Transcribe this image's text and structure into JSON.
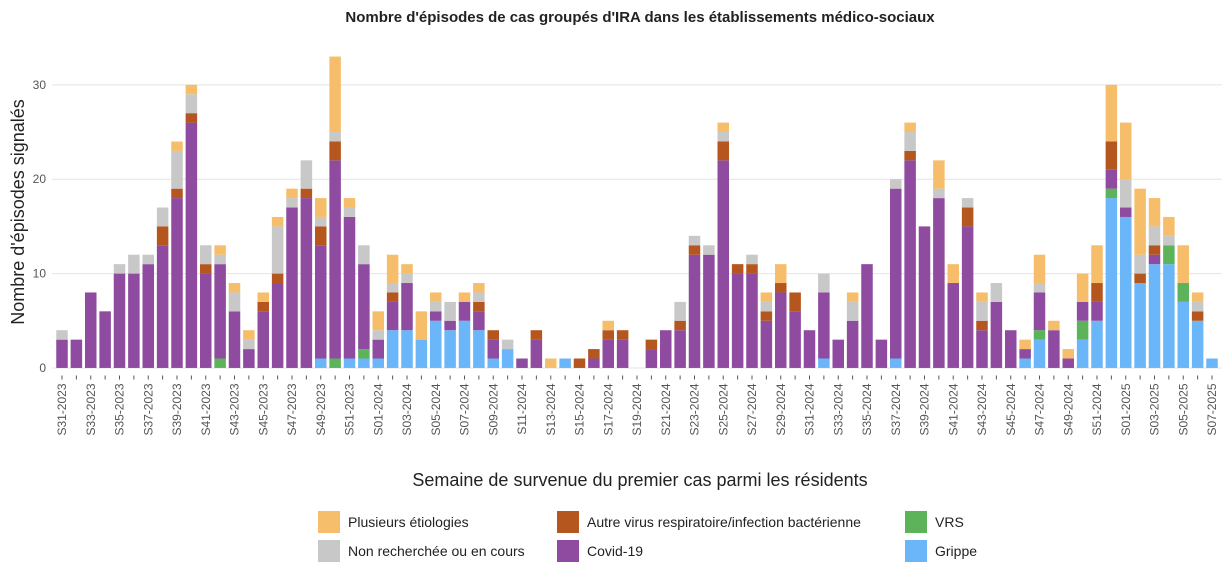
{
  "chart_data": {
    "type": "stacked_bar",
    "title": "Nombre d'épisodes de cas groupés d'IRA dans les établissements médico-sociaux",
    "x_label": "Semaine de survenue du premier cas parmi les résidents",
    "y_label": "Nombre d'épisodes signalés",
    "categories": [
      "S31-2023",
      null,
      "S33-2023",
      null,
      "S35-2023",
      null,
      "S37-2023",
      null,
      "S39-2023",
      null,
      "S41-2023",
      null,
      "S43-2023",
      null,
      "S45-2023",
      null,
      "S47-2023",
      null,
      "S49-2023",
      null,
      "S51-2023",
      null,
      "S01-2024",
      null,
      "S03-2024",
      null,
      "S05-2024",
      null,
      "S07-2024",
      null,
      "S09-2024",
      null,
      "S11-2024",
      null,
      "S13-2024",
      null,
      "S15-2024",
      null,
      "S17-2024",
      null,
      "S19-2024",
      null,
      "S21-2024",
      null,
      "S23-2024",
      null,
      "S25-2024",
      null,
      "S27-2024",
      null,
      "S29-2024",
      null,
      "S31-2024",
      null,
      "S33-2024",
      null,
      "S35-2024",
      null,
      "S37-2024",
      null,
      "S39-2024",
      null,
      "S41-2024",
      null,
      "S43-2024",
      null,
      "S45-2024",
      null,
      "S47-2024",
      null,
      "S49-2024",
      null,
      "S51-2024",
      null,
      "S01-2025",
      null,
      "S03-2025",
      null,
      "S05-2025",
      null,
      "S07-2025"
    ],
    "series": [
      {
        "name": "Grippe",
        "color": "#6bb6f8",
        "values": [
          0,
          0,
          0,
          0,
          0,
          0,
          0,
          0,
          0,
          0,
          0,
          0,
          0,
          0,
          0,
          0,
          0,
          0,
          1,
          0,
          1,
          1,
          1,
          4,
          4,
          3,
          5,
          4,
          5,
          4,
          1,
          2,
          0,
          0,
          0,
          1,
          0,
          0,
          0,
          0,
          0,
          0,
          0,
          0,
          0,
          0,
          0,
          0,
          0,
          0,
          0,
          0,
          0,
          1,
          0,
          0,
          0,
          0,
          1,
          0,
          0,
          0,
          0,
          0,
          0,
          0,
          0,
          1,
          3,
          0,
          0,
          3,
          5,
          18,
          16,
          9,
          11,
          11,
          7,
          5,
          1
        ]
      },
      {
        "name": "VRS",
        "color": "#5cb35a",
        "values": [
          0,
          0,
          0,
          0,
          0,
          0,
          0,
          0,
          0,
          0,
          0,
          1,
          0,
          0,
          0,
          0,
          0,
          0,
          0,
          1,
          0,
          1,
          0,
          0,
          0,
          0,
          0,
          0,
          0,
          0,
          0,
          0,
          0,
          0,
          0,
          0,
          0,
          0,
          0,
          0,
          0,
          0,
          0,
          0,
          0,
          0,
          0,
          0,
          0,
          0,
          0,
          0,
          0,
          0,
          0,
          0,
          0,
          0,
          0,
          0,
          0,
          0,
          0,
          0,
          0,
          0,
          0,
          0,
          1,
          0,
          0,
          2,
          0,
          1,
          0,
          0,
          0,
          2,
          2,
          0,
          0
        ]
      },
      {
        "name": "Covid-19",
        "color": "#8e4ba0",
        "values": [
          3,
          3,
          8,
          6,
          10,
          10,
          11,
          13,
          18,
          26,
          10,
          10,
          6,
          2,
          6,
          9,
          17,
          18,
          12,
          21,
          15,
          9,
          2,
          3,
          5,
          0,
          1,
          1,
          2,
          2,
          2,
          0,
          1,
          3,
          0,
          0,
          0,
          1,
          3,
          3,
          0,
          2,
          4,
          4,
          12,
          12,
          22,
          10,
          10,
          5,
          8,
          6,
          4,
          7,
          3,
          5,
          11,
          3,
          18,
          22,
          15,
          18,
          9,
          15,
          4,
          7,
          4,
          1,
          4,
          4,
          1,
          2,
          2,
          2,
          1,
          0,
          1,
          0,
          0,
          0,
          0
        ]
      },
      {
        "name": "Autre virus respiratoire/infection bactérienne",
        "color": "#b5561e",
        "values": [
          0,
          0,
          0,
          0,
          0,
          0,
          0,
          2,
          1,
          1,
          1,
          0,
          0,
          0,
          1,
          1,
          0,
          1,
          2,
          2,
          0,
          0,
          0,
          1,
          0,
          0,
          0,
          0,
          0,
          1,
          1,
          0,
          0,
          1,
          0,
          0,
          1,
          1,
          1,
          1,
          0,
          1,
          0,
          1,
          1,
          0,
          2,
          1,
          1,
          1,
          1,
          2,
          0,
          0,
          0,
          0,
          0,
          0,
          0,
          1,
          0,
          0,
          0,
          2,
          1,
          0,
          0,
          0,
          0,
          0,
          0,
          0,
          2,
          3,
          0,
          1,
          1,
          0,
          0,
          1,
          0
        ]
      },
      {
        "name": "Non recherchée ou en cours",
        "color": "#c8c8c8",
        "values": [
          1,
          0,
          0,
          0,
          1,
          2,
          1,
          2,
          4,
          2,
          2,
          1,
          2,
          1,
          0,
          5,
          1,
          3,
          1,
          1,
          1,
          2,
          1,
          1,
          1,
          0,
          1,
          2,
          0,
          1,
          0,
          1,
          0,
          0,
          0,
          0,
          0,
          0,
          0,
          0,
          0,
          0,
          0,
          2,
          1,
          1,
          1,
          0,
          1,
          1,
          0,
          0,
          0,
          2,
          0,
          2,
          0,
          0,
          1,
          2,
          0,
          1,
          0,
          1,
          2,
          2,
          0,
          0,
          1,
          0,
          0,
          0,
          0,
          0,
          3,
          2,
          2,
          1,
          0,
          1,
          0
        ]
      },
      {
        "name": "Plusieurs étiologies",
        "color": "#f6be6a",
        "values": [
          0,
          0,
          0,
          0,
          0,
          0,
          0,
          0,
          1,
          1,
          0,
          1,
          1,
          1,
          1,
          1,
          1,
          0,
          2,
          8,
          1,
          0,
          2,
          3,
          1,
          3,
          1,
          0,
          1,
          1,
          0,
          0,
          0,
          0,
          1,
          0,
          0,
          0,
          1,
          0,
          0,
          0,
          0,
          0,
          0,
          0,
          1,
          0,
          0,
          1,
          2,
          0,
          0,
          0,
          0,
          1,
          0,
          0,
          0,
          1,
          0,
          3,
          2,
          0,
          1,
          0,
          0,
          1,
          3,
          1,
          1,
          3,
          4,
          6,
          6,
          7,
          3,
          2,
          4,
          1,
          0
        ]
      }
    ],
    "ylim": [
      -0.8,
      33.8
    ],
    "yticks": [
      0,
      10,
      20,
      30
    ],
    "grid": true,
    "legend": "bottom"
  }
}
